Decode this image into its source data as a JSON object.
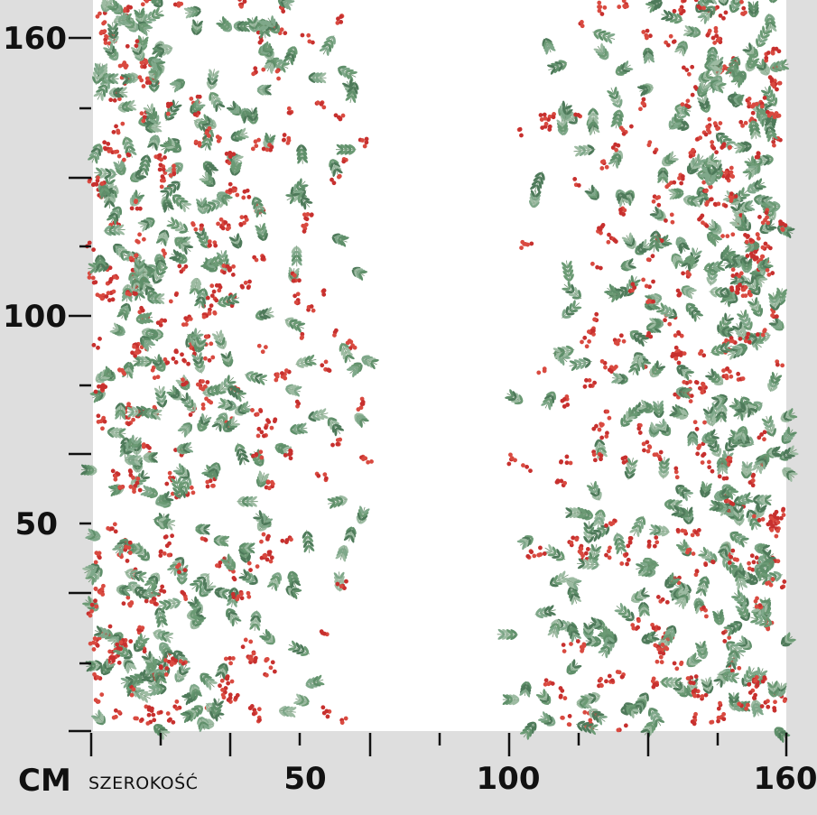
{
  "vertical_ruler": {
    "labels": [
      "160",
      "100",
      "50"
    ]
  },
  "horizontal_ruler": {
    "unit": "CM",
    "caption": "SZEROKOŚĆ",
    "labels": [
      "50",
      "100",
      "160"
    ]
  }
}
